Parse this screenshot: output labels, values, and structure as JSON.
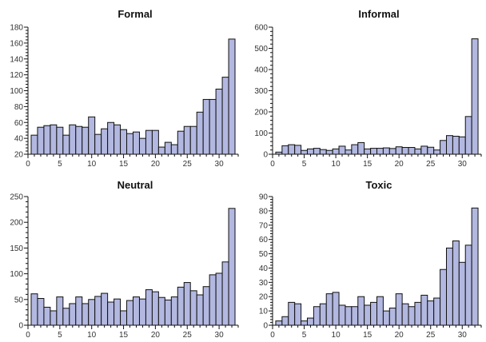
{
  "chart_data": [
    {
      "type": "bar",
      "title": "Formal",
      "x": [
        1,
        2,
        3,
        4,
        5,
        6,
        7,
        8,
        9,
        10,
        11,
        12,
        13,
        14,
        15,
        16,
        17,
        18,
        19,
        20,
        21,
        22,
        23,
        24,
        25,
        26,
        27,
        28,
        29,
        30,
        31,
        32
      ],
      "values": [
        44,
        54,
        56,
        57,
        54,
        44,
        57,
        55,
        54,
        67,
        45,
        52,
        60,
        57,
        51,
        46,
        48,
        40,
        50,
        50,
        29,
        35,
        32,
        49,
        55,
        55,
        73,
        89,
        89,
        102,
        117,
        165
      ],
      "xlim": [
        0,
        33
      ],
      "ylim": [
        20,
        180
      ],
      "xticks": [
        0,
        5,
        10,
        15,
        20,
        25,
        30
      ],
      "yticks": [
        20,
        40,
        60,
        80,
        100,
        120,
        140,
        160,
        180
      ],
      "grid": false
    },
    {
      "type": "bar",
      "title": "Informal",
      "x": [
        1,
        2,
        3,
        4,
        5,
        6,
        7,
        8,
        9,
        10,
        11,
        12,
        13,
        14,
        15,
        16,
        17,
        18,
        19,
        20,
        21,
        22,
        23,
        24,
        25,
        26,
        27,
        28,
        29,
        30,
        31,
        32
      ],
      "values": [
        10,
        40,
        45,
        42,
        18,
        25,
        28,
        22,
        18,
        25,
        38,
        20,
        45,
        55,
        25,
        28,
        28,
        30,
        27,
        35,
        32,
        32,
        25,
        38,
        33,
        20,
        65,
        88,
        85,
        82,
        178,
        545
      ],
      "xlim": [
        0,
        33
      ],
      "ylim": [
        0,
        600
      ],
      "xticks": [
        0,
        5,
        10,
        15,
        20,
        25,
        30
      ],
      "yticks": [
        0,
        100,
        200,
        300,
        400,
        500,
        600
      ],
      "grid": false
    },
    {
      "type": "bar",
      "title": "Neutral",
      "x": [
        1,
        2,
        3,
        4,
        5,
        6,
        7,
        8,
        9,
        10,
        11,
        12,
        13,
        14,
        15,
        16,
        17,
        18,
        19,
        20,
        21,
        22,
        23,
        24,
        25,
        26,
        27,
        28,
        29,
        30,
        31,
        32
      ],
      "values": [
        61,
        52,
        35,
        28,
        55,
        33,
        42,
        55,
        42,
        50,
        56,
        62,
        45,
        51,
        28,
        48,
        55,
        51,
        69,
        65,
        54,
        49,
        55,
        74,
        83,
        67,
        59,
        75,
        98,
        101,
        123,
        227
      ],
      "xlim": [
        0,
        33
      ],
      "ylim": [
        0,
        250
      ],
      "xticks": [
        0,
        5,
        10,
        15,
        20,
        25,
        30
      ],
      "yticks": [
        0,
        50,
        100,
        150,
        200,
        250
      ],
      "grid": false
    },
    {
      "type": "bar",
      "title": "Toxic",
      "x": [
        1,
        2,
        3,
        4,
        5,
        6,
        7,
        8,
        9,
        10,
        11,
        12,
        13,
        14,
        15,
        16,
        17,
        18,
        19,
        20,
        21,
        22,
        23,
        24,
        25,
        26,
        27,
        28,
        29,
        30,
        31,
        32
      ],
      "values": [
        3,
        6,
        16,
        15,
        3,
        5,
        13,
        15,
        22,
        23,
        14,
        13,
        13,
        20,
        14,
        16,
        20,
        10,
        12,
        22,
        15,
        13,
        16,
        21,
        17,
        19,
        39,
        54,
        59,
        44,
        56,
        82
      ],
      "xlim": [
        0,
        33
      ],
      "ylim": [
        0,
        90
      ],
      "xticks": [
        0,
        5,
        10,
        15,
        20,
        25,
        30
      ],
      "yticks": [
        0,
        10,
        20,
        30,
        40,
        50,
        60,
        70,
        80,
        90
      ],
      "grid": false
    }
  ],
  "colors": {
    "bar_fill": "#b2b8e0",
    "bar_stroke": "#111111"
  }
}
